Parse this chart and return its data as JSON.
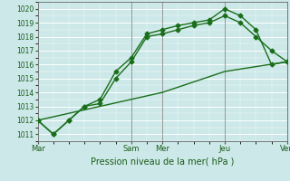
{
  "title": "",
  "xlabel": "Pression niveau de la mer( hPa )",
  "ylabel": "",
  "bg_color": "#cce8e8",
  "grid_color": "#ffffff",
  "line_color": "#1a6e1a",
  "ylim": [
    1010.5,
    1020.5
  ],
  "xlim": [
    0,
    96
  ],
  "yticks": [
    1011,
    1012,
    1013,
    1014,
    1015,
    1016,
    1017,
    1018,
    1019,
    1020
  ],
  "xtick_positions": [
    0,
    36,
    48,
    72,
    96
  ],
  "xtick_labels": [
    "Mar",
    "Sam",
    "Mer",
    "Jeu",
    "Ven"
  ],
  "vlines": [
    36,
    48,
    72
  ],
  "series1_x": [
    0,
    6,
    12,
    18,
    24,
    30,
    36,
    42,
    48,
    54,
    60,
    66,
    72,
    78,
    84,
    90,
    96
  ],
  "series1_y": [
    1012,
    1011,
    1012,
    1013,
    1013.5,
    1015.5,
    1016.5,
    1018.2,
    1018.5,
    1018.8,
    1019.0,
    1019.2,
    1020.0,
    1019.5,
    1018.5,
    1016.0,
    1016.2
  ],
  "series2_x": [
    0,
    6,
    12,
    18,
    24,
    30,
    36,
    42,
    48,
    54,
    60,
    66,
    72,
    78,
    84,
    90,
    96
  ],
  "series2_y": [
    1012,
    1011,
    1012,
    1013,
    1013.2,
    1015.0,
    1016.2,
    1018.0,
    1018.2,
    1018.5,
    1018.8,
    1019.0,
    1019.5,
    1019.0,
    1018.0,
    1017.0,
    1016.2
  ],
  "series3_x": [
    0,
    24,
    48,
    72,
    96
  ],
  "series3_y": [
    1012,
    1013.0,
    1014.0,
    1015.5,
    1016.2
  ],
  "marker": "D",
  "marker_size": 2.5,
  "linewidth": 1.0
}
